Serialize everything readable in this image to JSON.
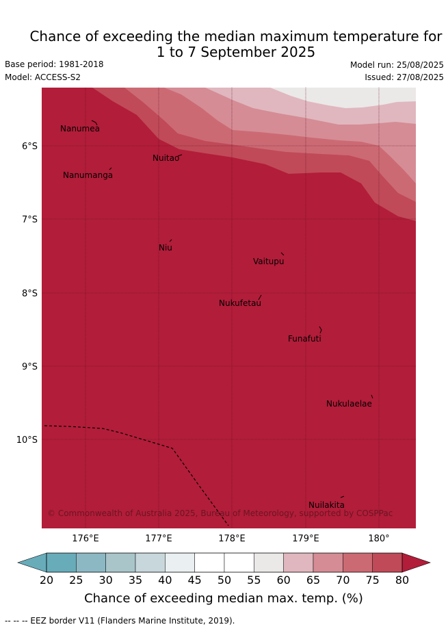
{
  "title": {
    "line1": "Chance of exceeding the median maximum temperature for",
    "line2": "1 to 7 September 2025"
  },
  "meta": {
    "base_period": "Base period: 1981-2018",
    "model": "Model: ACCESS-S2",
    "model_run": "Model run: 25/08/2025",
    "issued": "Issued: 27/08/2025"
  },
  "map": {
    "lat_ticks": [
      "6°S",
      "7°S",
      "8°S",
      "9°S",
      "10°S"
    ],
    "lon_ticks": [
      "176°E",
      "177°E",
      "178°E",
      "179°E",
      "180°"
    ],
    "places": [
      "Nanumea",
      "Nuitao",
      "Nanumanga",
      "Niu",
      "Vaitupu",
      "Nukufetau",
      "Funafuti",
      "Nukulaelae",
      "Nuilakita"
    ],
    "copyright": "© Commonwealth of Australia 2025, Bureau of Meteorology, supported by COSPPac",
    "colors": {
      "c55_60": "#ebe8e8",
      "c60_65": "#e0b7be",
      "c65_70": "#d58c95",
      "c70_75": "#cc6a74",
      "c75_80": "#c04a58",
      "c80": "#b21d39"
    }
  },
  "colorbar": {
    "ticks": [
      "20",
      "25",
      "30",
      "35",
      "40",
      "45",
      "50",
      "55",
      "60",
      "65",
      "70",
      "75",
      "80"
    ],
    "colors": [
      "#68acba",
      "#8cb8c4",
      "#a9c5ca",
      "#c8d7dc",
      "#eaeff1",
      "#ffffff",
      "#ffffff",
      "#ebe8e8",
      "#e0b7be",
      "#d58c95",
      "#cc6a74",
      "#c04a58"
    ],
    "under_color": "#68acba",
    "over_color": "#b21d39",
    "label": "Chance of exceeding median max. temp. (%)"
  },
  "footnote": "--  --  -- EEZ border V11 (Flanders Marine Institute, 2019)."
}
